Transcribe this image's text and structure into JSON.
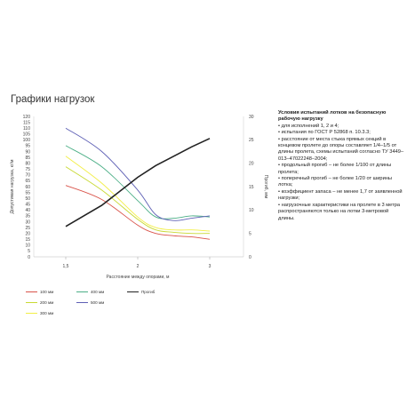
{
  "page": {
    "title": "Графики нагрузок"
  },
  "conditions": {
    "title": "Условия испытаний лотков на безопасную рабочую нагрузку",
    "items": [
      "для исполнений 1, 2 и 4;",
      "испытания по ГОСТ Р 52868 п. 10.3.3;",
      "расстояние от места стыка прямых секций в концевом пролете до опоры составляет 1/4–1/5 от длины пролета, схемы испытаний согласно ТУ 3449–013–47022248–2004;",
      "продольный прогиб – не более 1/100 от длины пролета;",
      "поперечный прогиб – не более 1/20 от ширины лотка;",
      "коэффициент запаса – не менее 1,7 от заявленной нагрузки;",
      "нагрузочные характеристики на пролете в 3 метра распространяются только на лотки 3-метровой длины."
    ]
  },
  "chart_data": {
    "type": "line",
    "xlabel": "Расстояние между опорами, м",
    "ylabel": "Допустимая нагрузка, кг/м",
    "y2label": "Прогиб, мм",
    "x_ticks": [
      "1,5",
      "2",
      "3"
    ],
    "x_range": [
      1.5,
      3
    ],
    "ylim": [
      0,
      120
    ],
    "y_ticks": [
      0,
      5,
      10,
      15,
      20,
      25,
      30,
      35,
      40,
      45,
      50,
      55,
      60,
      65,
      70,
      75,
      80,
      85,
      90,
      95,
      100,
      105,
      110,
      115,
      120
    ],
    "y2lim": [
      0,
      30
    ],
    "y2_ticks": [
      0,
      5,
      10,
      15,
      20,
      25,
      30
    ],
    "grid": false,
    "legend_position": "bottom",
    "series": [
      {
        "name": "100 мм",
        "color": "#d9534a",
        "axis": "left",
        "x": [
          1.5,
          1.75,
          2.0,
          2.25,
          2.5,
          2.75,
          3.0
        ],
        "y": [
          61,
          49,
          27,
          20,
          18,
          17,
          15
        ]
      },
      {
        "name": "200 мм",
        "color": "#c8d932",
        "axis": "left",
        "x": [
          1.5,
          1.75,
          2.0,
          2.25,
          2.5,
          2.75,
          3.0
        ],
        "y": [
          77,
          57,
          32,
          23,
          21,
          20,
          20
        ]
      },
      {
        "name": "300 мм",
        "color": "#f2ee46",
        "axis": "left",
        "x": [
          1.5,
          1.75,
          2.0,
          2.25,
          2.5,
          2.75,
          3.0
        ],
        "y": [
          86,
          63,
          34,
          25,
          23,
          23,
          22
        ]
      },
      {
        "name": "400 мм",
        "color": "#4caf87",
        "axis": "left",
        "x": [
          1.5,
          1.75,
          2.0,
          2.25,
          2.5,
          2.75,
          3.0
        ],
        "y": [
          95,
          77,
          48,
          34,
          33,
          35,
          34
        ]
      },
      {
        "name": "500 мм",
        "color": "#5e60b5",
        "axis": "left",
        "x": [
          1.5,
          1.75,
          2.0,
          2.25,
          2.5,
          2.75,
          3.0
        ],
        "y": [
          110,
          90,
          57,
          36,
          31,
          33,
          35
        ]
      },
      {
        "name": "Прогиб",
        "color": "#222222",
        "axis": "right",
        "x": [
          1.5,
          1.75,
          2.0,
          2.25,
          2.5,
          2.75,
          3.0
        ],
        "y": [
          6.5,
          11,
          17,
          19.5,
          21.5,
          23.5,
          25.3
        ]
      }
    ],
    "legend": [
      {
        "label": "100 мм",
        "color": "#d9534a"
      },
      {
        "label": "400 мм",
        "color": "#4caf87"
      },
      {
        "label": "Прогиб",
        "color": "#222222"
      },
      {
        "label": "200 мм",
        "color": "#c8d932"
      },
      {
        "label": "500 мм",
        "color": "#5e60b5"
      },
      {
        "label": "300 мм",
        "color": "#f2ee46"
      }
    ]
  }
}
